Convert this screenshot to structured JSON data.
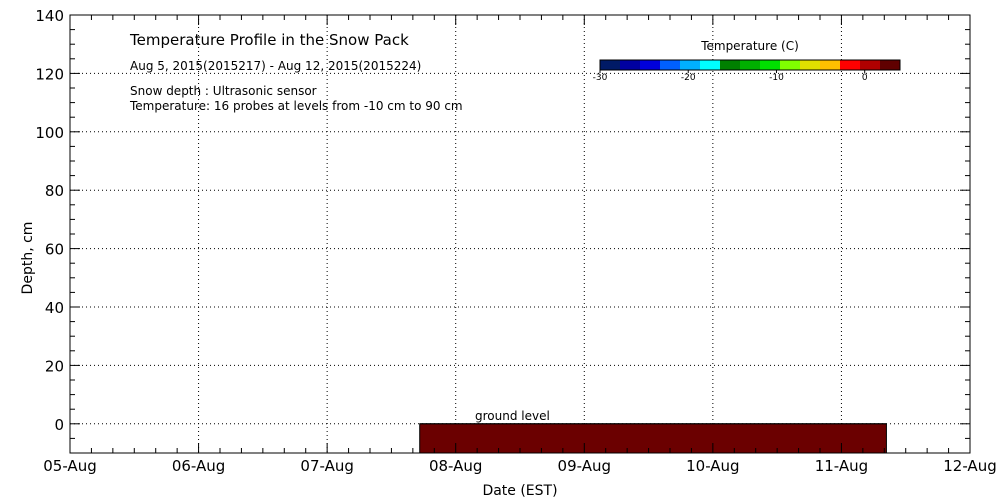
{
  "chart_data": {
    "type": "heatmap",
    "title": "Temperature Profile in the Snow Pack",
    "subtitle": "Aug  5, 2015(2015217) - Aug 12, 2015(2015224)",
    "notes": [
      "Snow depth : Ultrasonic sensor",
      "Temperature: 16 probes at levels from -10 cm to 90 cm"
    ],
    "xlabel": "Date (EST)",
    "ylabel": "Depth, cm",
    "x_ticks": [
      "05-Aug",
      "06-Aug",
      "07-Aug",
      "08-Aug",
      "09-Aug",
      "10-Aug",
      "11-Aug",
      "12-Aug"
    ],
    "y_ticks": [
      0,
      20,
      40,
      60,
      80,
      100,
      120,
      140
    ],
    "ylim": [
      -10,
      140
    ],
    "xlim_days": [
      0,
      7
    ],
    "grid": true,
    "ground_label": "ground level",
    "ground_level": 0,
    "temperature_block": {
      "x_start_day": 2.72,
      "x_end_day": 6.35,
      "y_bottom": -10,
      "y_top": 0,
      "color": "#6b0000"
    },
    "colorbar": {
      "title": "Temperature (C)",
      "tick_labels": [
        "-30",
        "-20",
        "-10",
        "0"
      ],
      "tick_values": [
        -30,
        -20,
        -10,
        0
      ],
      "range": [
        -30,
        4
      ],
      "colors": [
        "#001a66",
        "#0000a0",
        "#0000dc",
        "#0060ff",
        "#00b0ff",
        "#00ffff",
        "#008000",
        "#00b000",
        "#00e000",
        "#80ff00",
        "#e0e000",
        "#ffc000",
        "#ff0000",
        "#b00000",
        "#600000"
      ]
    }
  }
}
